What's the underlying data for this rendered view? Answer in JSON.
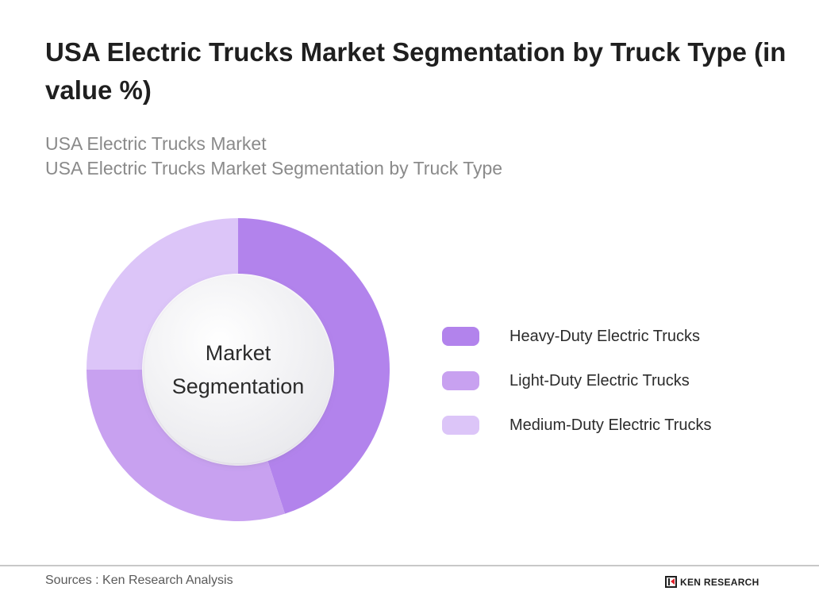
{
  "title": "USA Electric Trucks Market Segmentation by Truck Type (in value %)",
  "subtitle_line1": "USA Electric Trucks Market",
  "subtitle_line2": "USA Electric Trucks Market Segmentation by Truck Type",
  "center_label": [
    "Market",
    "Segmentation"
  ],
  "chart_data": {
    "type": "pie",
    "donut": true,
    "title": "USA Electric Trucks Market Segmentation by Truck Type (in value %)",
    "unit": "%",
    "categories": [
      "Heavy-Duty Electric Trucks",
      "Light-Duty Electric Trucks",
      "Medium-Duty Electric Trucks"
    ],
    "values": [
      45,
      30,
      25
    ],
    "colors": [
      "#b283ec",
      "#c8a1f0",
      "#dcc5f8"
    ],
    "start_angle_deg": 0,
    "direction": "clockwise",
    "legend_position": "right"
  },
  "footer": {
    "source": "Sources : Ken Research Analysis",
    "brand": "KEN RESEARCH"
  }
}
